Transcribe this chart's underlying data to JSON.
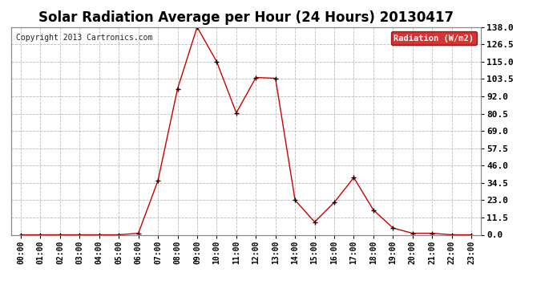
{
  "title": "Solar Radiation Average per Hour (24 Hours) 20130417",
  "copyright": "Copyright 2013 Cartronics.com",
  "legend_label": "Radiation (W/m2)",
  "x_labels": [
    "00:00",
    "01:00",
    "02:00",
    "03:00",
    "04:00",
    "05:00",
    "06:00",
    "07:00",
    "08:00",
    "09:00",
    "10:00",
    "11:00",
    "12:00",
    "13:00",
    "14:00",
    "15:00",
    "16:00",
    "17:00",
    "18:00",
    "19:00",
    "20:00",
    "21:00",
    "22:00",
    "23:00"
  ],
  "y_values": [
    0.0,
    0.0,
    0.0,
    0.0,
    0.0,
    0.0,
    1.0,
    36.0,
    97.0,
    138.0,
    115.0,
    81.0,
    104.5,
    104.0,
    23.0,
    8.5,
    21.5,
    38.0,
    16.5,
    4.5,
    1.0,
    1.0,
    0.0,
    0.0
  ],
  "y_ticks": [
    0.0,
    11.5,
    23.0,
    34.5,
    46.0,
    57.5,
    69.0,
    80.5,
    92.0,
    103.5,
    115.0,
    126.5,
    138.0
  ],
  "y_min": 0.0,
  "y_max": 138.0,
  "line_color": "#cc0000",
  "marker": "+",
  "marker_color": "#000000",
  "bg_color": "#ffffff",
  "grid_color": "#bbbbbb",
  "title_fontsize": 12,
  "copyright_fontsize": 7,
  "legend_bg": "#cc0000",
  "legend_text_color": "#ffffff",
  "tick_fontsize": 8,
  "x_tick_fontsize": 7
}
